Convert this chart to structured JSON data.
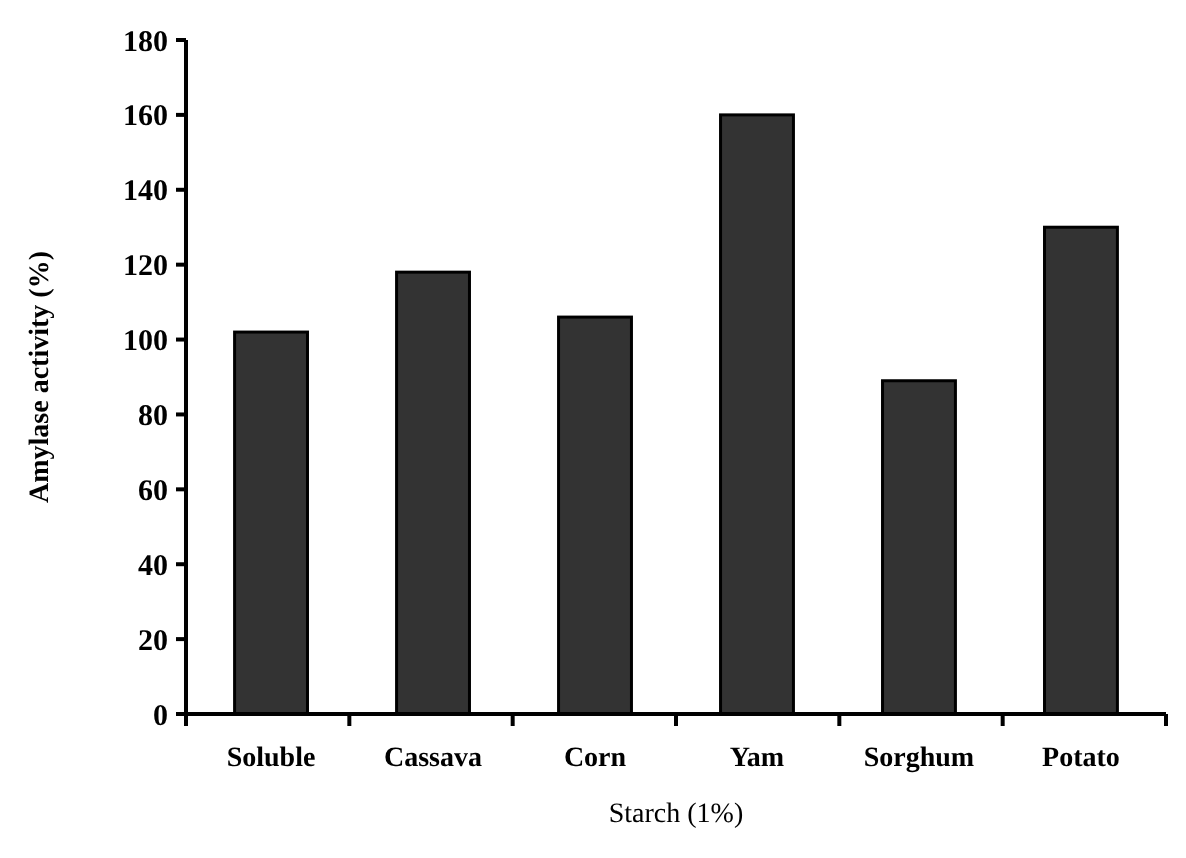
{
  "chart_data": {
    "type": "bar",
    "xlabel": "Starch (1%)",
    "ylabel": "Amylase activity (%)",
    "categories": [
      "Soluble",
      "Cassava",
      "Corn",
      "Yam",
      "Sorghum",
      "Potato"
    ],
    "values": [
      102,
      118,
      106,
      160,
      89,
      130
    ],
    "color": "#333333",
    "ylim": [
      0,
      180
    ],
    "yticks": [
      0,
      20,
      40,
      60,
      80,
      100,
      120,
      140,
      160,
      180
    ],
    "grid": false
  }
}
